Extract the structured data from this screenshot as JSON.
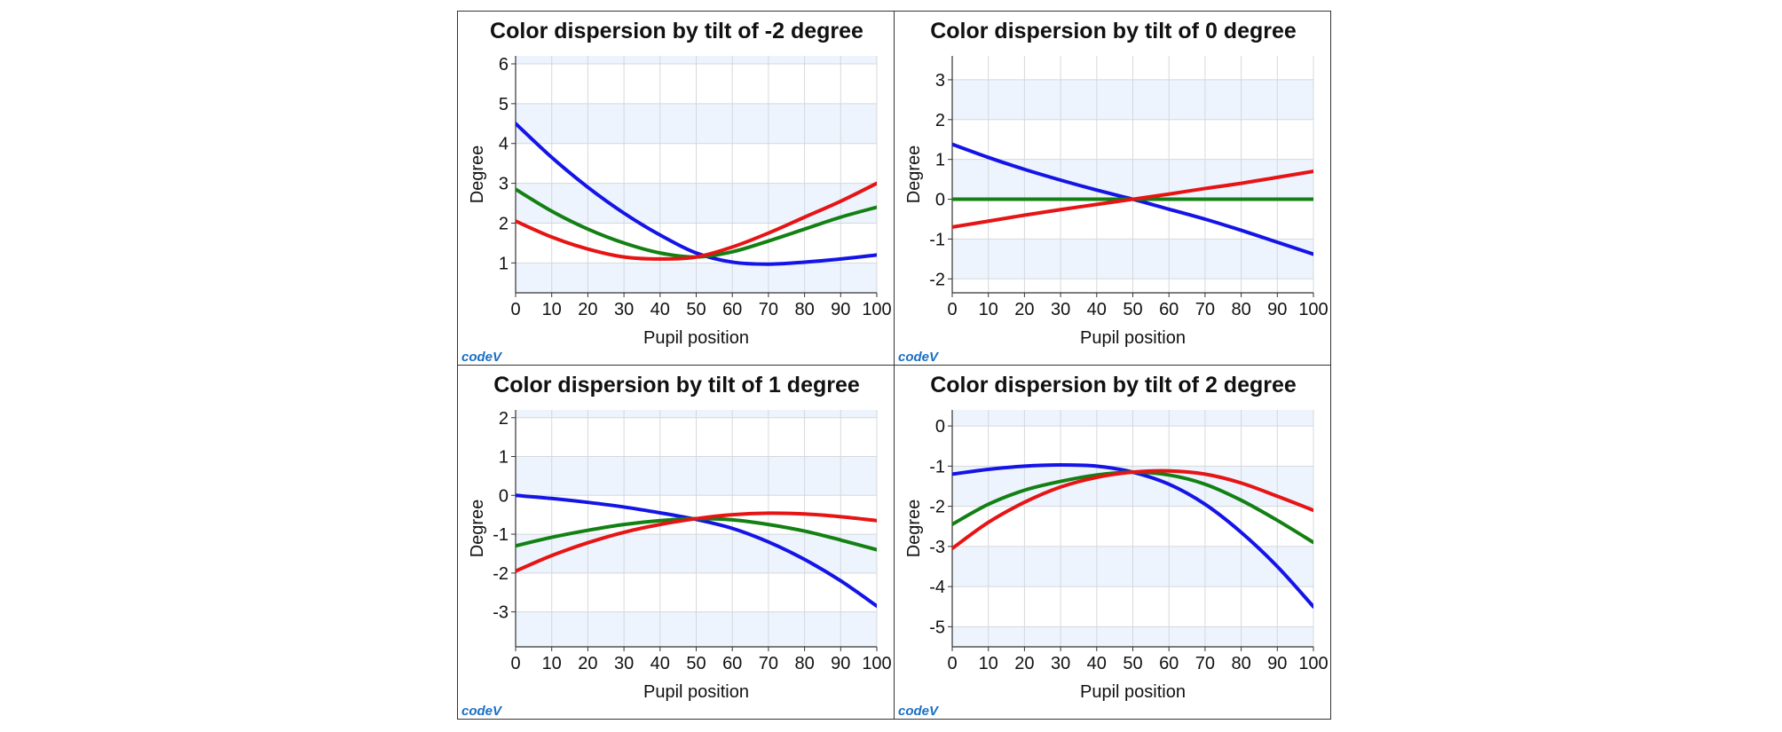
{
  "logo_text": "codeV",
  "colors": {
    "band": "#edf4fd",
    "grid": "#d5d8dc",
    "blue": "#1414e6",
    "green": "#138013",
    "red": "#e61414"
  },
  "chart_data": [
    {
      "type": "line",
      "title": "Color dispersion by tilt of -2 degree",
      "xlabel": "Pupil position",
      "ylabel": "Degree",
      "x": [
        0,
        10,
        20,
        30,
        40,
        50,
        60,
        70,
        80,
        90,
        100
      ],
      "xlim": [
        0,
        100
      ],
      "ylim": [
        0.25,
        6.2
      ],
      "yticks": [
        1,
        2,
        3,
        4,
        5,
        6
      ],
      "grid": true,
      "series": [
        {
          "color": "blue",
          "values": [
            4.5,
            3.65,
            2.9,
            2.25,
            1.7,
            1.25,
            1.02,
            0.97,
            1.02,
            1.1,
            1.2
          ]
        },
        {
          "color": "green",
          "values": [
            2.85,
            2.3,
            1.85,
            1.5,
            1.25,
            1.15,
            1.28,
            1.55,
            1.85,
            2.15,
            2.4
          ]
        },
        {
          "color": "red",
          "values": [
            2.05,
            1.65,
            1.35,
            1.15,
            1.1,
            1.15,
            1.4,
            1.75,
            2.15,
            2.55,
            3.0
          ]
        }
      ]
    },
    {
      "type": "line",
      "title": "Color dispersion by tilt of 0 degree",
      "xlabel": "Pupil position",
      "ylabel": "Degree",
      "x": [
        0,
        10,
        20,
        30,
        40,
        50,
        60,
        70,
        80,
        90,
        100
      ],
      "xlim": [
        0,
        100
      ],
      "ylim": [
        -2.35,
        3.6
      ],
      "yticks": [
        -2,
        -1,
        0,
        1,
        2,
        3
      ],
      "grid": true,
      "series": [
        {
          "color": "blue",
          "values": [
            1.38,
            1.05,
            0.75,
            0.48,
            0.23,
            0.0,
            -0.25,
            -0.5,
            -0.78,
            -1.08,
            -1.38
          ]
        },
        {
          "color": "green",
          "values": [
            0,
            0,
            0,
            0,
            0,
            0,
            0,
            0,
            0,
            0,
            0
          ]
        },
        {
          "color": "red",
          "values": [
            -0.7,
            -0.55,
            -0.4,
            -0.26,
            -0.13,
            0.0,
            0.13,
            0.27,
            0.4,
            0.55,
            0.7
          ]
        }
      ]
    },
    {
      "type": "line",
      "title": "Color dispersion by tilt of 1 degree",
      "xlabel": "Pupil position",
      "ylabel": "Degree",
      "x": [
        0,
        10,
        20,
        30,
        40,
        50,
        60,
        70,
        80,
        90,
        100
      ],
      "xlim": [
        0,
        100
      ],
      "ylim": [
        -3.9,
        2.2
      ],
      "yticks": [
        -3,
        -2,
        -1,
        0,
        1,
        2
      ],
      "grid": true,
      "series": [
        {
          "color": "blue",
          "values": [
            0.0,
            -0.08,
            -0.18,
            -0.3,
            -0.45,
            -0.62,
            -0.85,
            -1.2,
            -1.65,
            -2.2,
            -2.85
          ]
        },
        {
          "color": "green",
          "values": [
            -1.3,
            -1.08,
            -0.9,
            -0.75,
            -0.65,
            -0.6,
            -0.63,
            -0.75,
            -0.92,
            -1.15,
            -1.4
          ]
        },
        {
          "color": "red",
          "values": [
            -1.95,
            -1.55,
            -1.22,
            -0.95,
            -0.75,
            -0.6,
            -0.5,
            -0.46,
            -0.48,
            -0.55,
            -0.65
          ]
        }
      ]
    },
    {
      "type": "line",
      "title": "Color dispersion by tilt of 2 degree",
      "xlabel": "Pupil position",
      "ylabel": "Degree",
      "x": [
        0,
        10,
        20,
        30,
        40,
        50,
        60,
        70,
        80,
        90,
        100
      ],
      "xlim": [
        0,
        100
      ],
      "ylim": [
        -5.5,
        0.4
      ],
      "yticks": [
        -5,
        -4,
        -3,
        -2,
        -1,
        0
      ],
      "grid": true,
      "series": [
        {
          "color": "blue",
          "values": [
            -1.2,
            -1.08,
            -1.0,
            -0.97,
            -1.0,
            -1.15,
            -1.45,
            -1.95,
            -2.65,
            -3.5,
            -4.5
          ]
        },
        {
          "color": "green",
          "values": [
            -2.45,
            -1.95,
            -1.6,
            -1.38,
            -1.22,
            -1.15,
            -1.22,
            -1.45,
            -1.85,
            -2.35,
            -2.9
          ]
        },
        {
          "color": "red",
          "values": [
            -3.05,
            -2.4,
            -1.9,
            -1.52,
            -1.28,
            -1.15,
            -1.12,
            -1.2,
            -1.42,
            -1.75,
            -2.1
          ]
        }
      ]
    }
  ]
}
